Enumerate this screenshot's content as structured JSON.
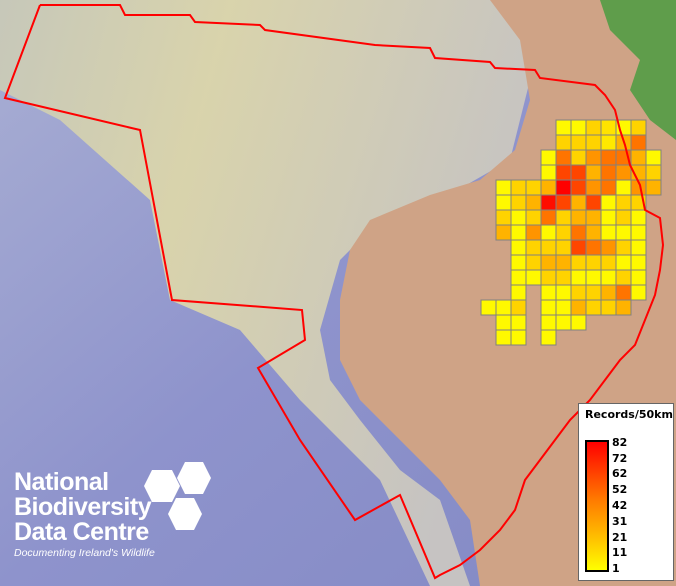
{
  "legend": {
    "title": "Records/50km",
    "ticks": [
      "82",
      "72",
      "62",
      "52",
      "42",
      "31",
      "21",
      "11",
      "1"
    ],
    "min_color": "#ffff00",
    "max_color": "#ff0000"
  },
  "logo": {
    "lines": [
      "National",
      "Biodiversity",
      "Data Centre"
    ],
    "tagline": "Documenting Ireland's Wildlife"
  },
  "colors": {
    "boundary": "#ff0000",
    "land": "#cfa386",
    "sea_shallow": "#dcd6aa",
    "sea_deep": "#8e93cc",
    "grid_border": "#808080"
  },
  "grid_records": [
    [
      null,
      null,
      null,
      null,
      null,
      3,
      3,
      15,
      10,
      3,
      15,
      null
    ],
    [
      null,
      null,
      null,
      null,
      null,
      15,
      15,
      15,
      8,
      25,
      45,
      null
    ],
    [
      null,
      null,
      null,
      null,
      3,
      45,
      15,
      35,
      45,
      45,
      25,
      3
    ],
    [
      null,
      null,
      null,
      null,
      3,
      60,
      60,
      25,
      45,
      35,
      25,
      15
    ],
    [
      null,
      3,
      15,
      15,
      25,
      82,
      60,
      35,
      45,
      3,
      35,
      25
    ],
    [
      null,
      3,
      15,
      25,
      78,
      60,
      25,
      60,
      3,
      15,
      15,
      null
    ],
    [
      null,
      15,
      3,
      15,
      45,
      15,
      25,
      25,
      3,
      15,
      3,
      null
    ],
    [
      null,
      25,
      3,
      35,
      3,
      15,
      45,
      25,
      3,
      3,
      3,
      null
    ],
    [
      null,
      null,
      3,
      15,
      15,
      15,
      60,
      45,
      35,
      15,
      3,
      null
    ],
    [
      null,
      null,
      3,
      15,
      25,
      25,
      15,
      15,
      15,
      3,
      3,
      null
    ],
    [
      null,
      null,
      3,
      3,
      15,
      15,
      3,
      3,
      3,
      15,
      3,
      null
    ],
    [
      null,
      null,
      3,
      null,
      3,
      3,
      15,
      15,
      25,
      45,
      3,
      null
    ],
    [
      3,
      3,
      15,
      null,
      3,
      3,
      25,
      15,
      15,
      25,
      null,
      null
    ],
    [
      null,
      3,
      3,
      null,
      3,
      3,
      3,
      null,
      null,
      null,
      null,
      null
    ],
    [
      null,
      3,
      3,
      null,
      3,
      null,
      null,
      null,
      null,
      null,
      null,
      null
    ]
  ]
}
